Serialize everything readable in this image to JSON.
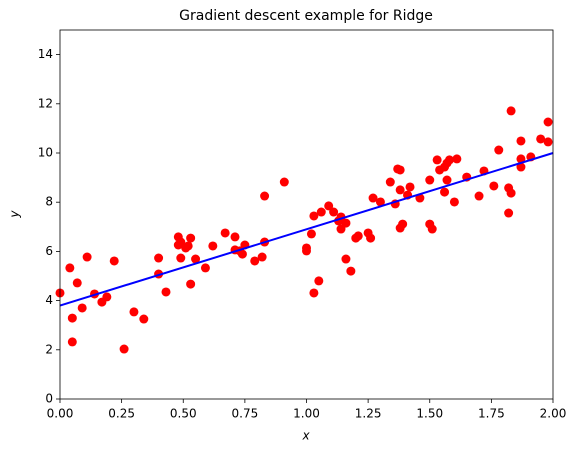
{
  "chart_data": {
    "type": "scatter",
    "title": "Gradient descent example for Ridge",
    "xlabel": "x",
    "ylabel": "y",
    "color": "#ff0000",
    "x": [
      0.0,
      0.04,
      0.05,
      0.05,
      0.07,
      0.09,
      0.11,
      0.14,
      0.17,
      0.19,
      0.22,
      0.26,
      0.3,
      0.34,
      0.4,
      0.4,
      0.43,
      0.48,
      0.48,
      0.49,
      0.49,
      0.51,
      0.52,
      0.53,
      0.53,
      0.55,
      0.59,
      0.62,
      0.67,
      0.71,
      0.71,
      0.73,
      0.74,
      0.75,
      0.79,
      0.82,
      0.83,
      0.83,
      0.91,
      1.0,
      1.0,
      1.02,
      1.03,
      1.03,
      1.05,
      1.06,
      1.09,
      1.11,
      1.13,
      1.14,
      1.14,
      1.16,
      1.16,
      1.18,
      1.2,
      1.21,
      1.25,
      1.26,
      1.27,
      1.3,
      1.34,
      1.36,
      1.37,
      1.38,
      1.38,
      1.38,
      1.39,
      1.41,
      1.42,
      1.46,
      1.5,
      1.5,
      1.51,
      1.53,
      1.54,
      1.56,
      1.56,
      1.57,
      1.57,
      1.58,
      1.6,
      1.61,
      1.65,
      1.72,
      1.7,
      1.76,
      1.78,
      1.82,
      1.82,
      1.83,
      1.83,
      1.87,
      1.87,
      1.87,
      1.91,
      1.95,
      1.98,
      1.98
    ],
    "values": [
      4.31,
      5.33,
      3.29,
      2.32,
      4.72,
      3.7,
      5.77,
      4.27,
      3.94,
      4.15,
      5.61,
      2.03,
      3.54,
      3.25,
      5.73,
      5.08,
      4.35,
      6.26,
      6.59,
      6.38,
      5.73,
      6.14,
      6.22,
      6.54,
      4.67,
      5.69,
      5.33,
      6.22,
      6.75,
      6.59,
      6.06,
      6.02,
      5.89,
      6.26,
      5.61,
      5.77,
      6.38,
      8.25,
      8.82,
      6.14,
      6.02,
      6.71,
      4.31,
      7.44,
      4.8,
      7.6,
      7.85,
      7.6,
      7.24,
      7.4,
      6.91,
      7.15,
      5.69,
      5.2,
      6.54,
      6.63,
      6.75,
      6.54,
      8.17,
      8.01,
      8.82,
      7.93,
      9.35,
      8.5,
      9.31,
      6.95,
      7.11,
      8.29,
      8.62,
      8.17,
      8.9,
      7.11,
      6.91,
      9.72,
      9.31,
      9.43,
      8.41,
      9.59,
      8.9,
      9.72,
      8.01,
      9.76,
      9.02,
      9.27,
      8.25,
      8.66,
      10.12,
      7.56,
      8.58,
      8.37,
      11.71,
      10.49,
      9.43,
      9.76,
      9.84,
      10.57,
      11.26,
      10.45
    ],
    "line": {
      "x": [
        0,
        2
      ],
      "values": [
        3.8,
        10.0
      ],
      "color": "#0000ff"
    },
    "xlim": [
      0,
      2
    ],
    "ylim": [
      0,
      15
    ],
    "xticks": [
      {
        "value": 0,
        "label": "0.00"
      },
      {
        "value": 0.25,
        "label": "0.25"
      },
      {
        "value": 0.5,
        "label": "0.50"
      },
      {
        "value": 0.75,
        "label": "0.75"
      },
      {
        "value": 1,
        "label": "1.00"
      },
      {
        "value": 1.25,
        "label": "1.25"
      },
      {
        "value": 1.5,
        "label": "1.50"
      },
      {
        "value": 1.75,
        "label": "1.75"
      },
      {
        "value": 2,
        "label": "2.00"
      }
    ],
    "yticks": [
      0,
      2,
      4,
      6,
      8,
      10,
      12,
      14
    ]
  }
}
